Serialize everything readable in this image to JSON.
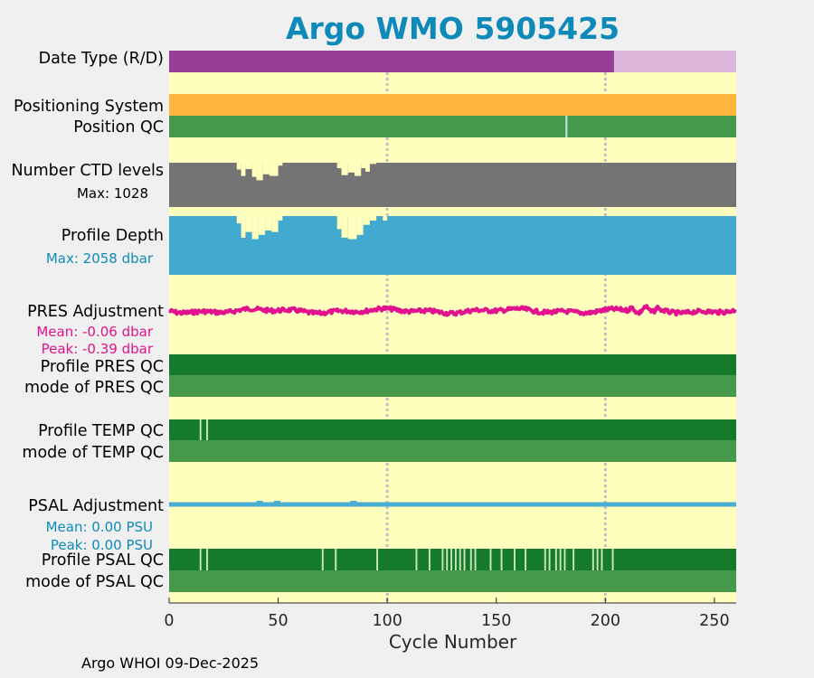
{
  "chart_data": {
    "type": "timeline",
    "title": "Argo WMO 5905425",
    "xlabel": "Cycle Number",
    "xlim": [
      0,
      260
    ],
    "xticks": [
      0,
      50,
      100,
      150,
      200,
      250
    ],
    "vlines": [
      100,
      200
    ],
    "colors": {
      "title": "#0e8ab8",
      "background": "#ffffbe",
      "dark_green": "#157a2c",
      "green": "#46994a",
      "pale_green": "#c8e6b4",
      "orange": "#ffb43f",
      "purple": "#9a3d98",
      "light_purple": "#dcb8dc",
      "gray": "#747474",
      "blue": "#42aacf",
      "pink": "#e2128e",
      "psal_line": "#4aaed2"
    },
    "rows": {
      "date_type": {
        "label": "Date Type (R/D)",
        "segments": [
          {
            "from": 0,
            "to": 204,
            "value": "R"
          },
          {
            "from": 204,
            "to": 260,
            "value": "D"
          }
        ]
      },
      "positioning_system": {
        "label": "Positioning System"
      },
      "position_qc": {
        "label": "Position QC",
        "flag_cycles": [
          182
        ]
      },
      "ctd_levels": {
        "label": "Number CTD levels",
        "annotation": "Max: 1028",
        "max": 1028,
        "dips": [
          {
            "from": 31,
            "to": 33,
            "value": 870
          },
          {
            "from": 33,
            "to": 35,
            "value": 720
          },
          {
            "from": 35,
            "to": 38,
            "value": 880
          },
          {
            "from": 38,
            "to": 40,
            "value": 700
          },
          {
            "from": 40,
            "to": 43,
            "value": 620
          },
          {
            "from": 43,
            "to": 46,
            "value": 760
          },
          {
            "from": 46,
            "to": 50,
            "value": 720
          },
          {
            "from": 50,
            "to": 52,
            "value": 960
          },
          {
            "from": 77,
            "to": 79,
            "value": 900
          },
          {
            "from": 79,
            "to": 82,
            "value": 740
          },
          {
            "from": 82,
            "to": 85,
            "value": 800
          },
          {
            "from": 85,
            "to": 88,
            "value": 720
          },
          {
            "from": 88,
            "to": 90,
            "value": 900
          },
          {
            "from": 90,
            "to": 92,
            "value": 820
          },
          {
            "from": 92,
            "to": 95,
            "value": 1000
          }
        ]
      },
      "profile_depth": {
        "label": "Profile Depth",
        "annotation": "Max: 2058 dbar",
        "max": 2058,
        "dips": [
          {
            "from": 31,
            "to": 33,
            "value": 1800
          },
          {
            "from": 33,
            "to": 35,
            "value": 1300
          },
          {
            "from": 35,
            "to": 38,
            "value": 1500
          },
          {
            "from": 38,
            "to": 41,
            "value": 1250
          },
          {
            "from": 41,
            "to": 44,
            "value": 1400
          },
          {
            "from": 44,
            "to": 47,
            "value": 1550
          },
          {
            "from": 47,
            "to": 50,
            "value": 1500
          },
          {
            "from": 50,
            "to": 52,
            "value": 1900
          },
          {
            "from": 77,
            "to": 79,
            "value": 1600
          },
          {
            "from": 79,
            "to": 82,
            "value": 1300
          },
          {
            "from": 82,
            "to": 86,
            "value": 1250
          },
          {
            "from": 86,
            "to": 89,
            "value": 1400
          },
          {
            "from": 89,
            "to": 92,
            "value": 1750
          },
          {
            "from": 92,
            "to": 95,
            "value": 1900
          },
          {
            "from": 98,
            "to": 100,
            "value": 1900
          }
        ]
      },
      "pres_adjustment": {
        "label": "PRES Adjustment",
        "mean_label": "Mean: -0.06 dbar",
        "peak_label": "Peak: -0.39 dbar",
        "mean": -0.06,
        "peak": -0.39
      },
      "profile_pres_qc": {
        "label": "Profile PRES QC"
      },
      "mode_pres_qc": {
        "label": "mode of PRES QC"
      },
      "profile_temp_qc": {
        "label": "Profile TEMP QC",
        "flag_cycles": [
          14,
          17
        ]
      },
      "mode_temp_qc": {
        "label": "mode of TEMP QC"
      },
      "psal_adjustment": {
        "label": "PSAL Adjustment",
        "mean_label": "Mean: 0.00 PSU",
        "peak_label": "Peak: 0.00 PSU",
        "mean": 0.0,
        "peak": 0.0
      },
      "profile_psal_qc": {
        "label": "Profile PSAL QC",
        "flag_cycles": [
          14,
          17,
          70,
          76,
          95,
          113,
          119,
          125,
          127,
          129,
          131,
          133,
          135,
          138,
          140,
          147,
          152,
          158,
          163,
          172,
          174,
          177,
          179,
          181,
          185,
          194,
          196,
          198,
          203
        ]
      },
      "mode_psal_qc": {
        "label": "mode of PSAL QC"
      }
    },
    "footer": "Argo WHOI 09-Dec-2025"
  }
}
